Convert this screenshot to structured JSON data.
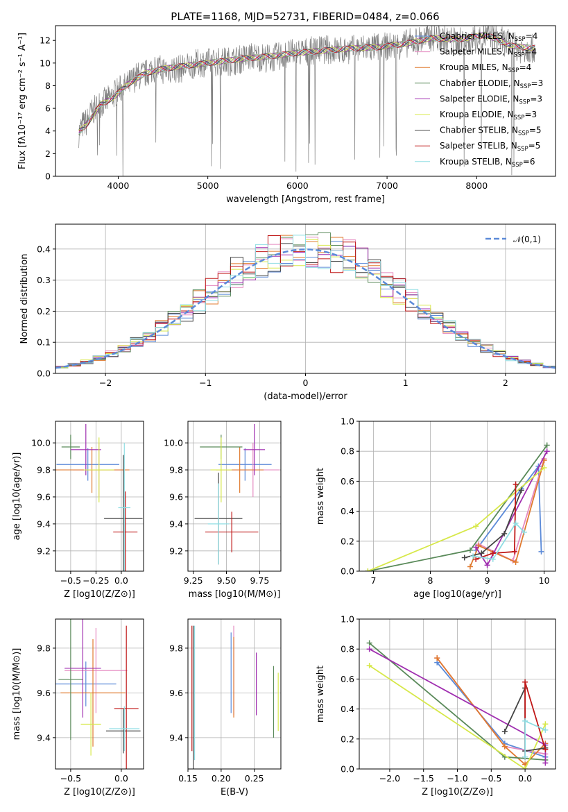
{
  "figure_title": "PLATE=1168, MJD=52731, FIBERID=0484, z=0.066",
  "models": [
    {
      "label": "Chabrier MILES, N",
      "sub": "SSP",
      "n": "=4",
      "color": "#5b8ad8"
    },
    {
      "label": "Salpeter MILES, N",
      "sub": "SSP",
      "n": "=4",
      "color": "#e58ac0"
    },
    {
      "label": "Kroupa MILES, N",
      "sub": "SSP",
      "n": "=4",
      "color": "#e07a2f"
    },
    {
      "label": "Chabrier ELODIE, N",
      "sub": "SSP",
      "n": "=3",
      "color": "#5a8a5a"
    },
    {
      "label": "Salpeter ELODIE, N",
      "sub": "SSP",
      "n": "=3",
      "color": "#a02fb0"
    },
    {
      "label": "Kroupa ELODIE, N",
      "sub": "SSP",
      "n": "=3",
      "color": "#d7e84a"
    },
    {
      "label": "Chabrier STELIB, N",
      "sub": "SSP",
      "n": "=5",
      "color": "#444444"
    },
    {
      "label": "Salpeter STELIB, N",
      "sub": "SSP",
      "n": "=5",
      "color": "#c01818"
    },
    {
      "label": "Kroupa STELIB, N",
      "sub": "SSP",
      "n": "=6",
      "color": "#8fdde3"
    }
  ],
  "chart_data": [
    {
      "id": "spectrum",
      "type": "line",
      "title": "PLATE=1168, MJD=52731, FIBERID=0484, z=0.066",
      "xlabel": "wavelength [Angstrom, rest frame]",
      "ylabel": "Flux [fλ10⁻¹⁷ erg cm⁻² s⁻¹ A⁻¹]",
      "xlim": [
        3300,
        8880
      ],
      "ylim": [
        0,
        13.3
      ],
      "xticks": [
        4000,
        5000,
        6000,
        7000,
        8000
      ],
      "yticks": [
        0,
        2,
        4,
        6,
        8,
        10,
        12
      ],
      "grid": false,
      "legend": "right",
      "data_series": {
        "name": "data",
        "color": "#808080",
        "x": [
          3560,
          3600,
          3650,
          3700,
          3800,
          3900,
          4000,
          4100,
          4200,
          4300,
          4400,
          4500,
          4700,
          4900,
          5100,
          5300,
          5500,
          5700,
          5900,
          6100,
          6300,
          6500,
          6700,
          6900,
          7100,
          7300,
          7500,
          7700,
          7900,
          8100,
          8300,
          8500,
          8650
        ],
        "y": [
          3.8,
          4.5,
          4.8,
          5.6,
          6.4,
          6.8,
          7.6,
          8.0,
          8.8,
          9.0,
          9.6,
          9.4,
          9.5,
          10.0,
          10.1,
          10.2,
          10.6,
          10.4,
          10.8,
          11.0,
          11.2,
          11.1,
          11.3,
          11.4,
          11.5,
          11.9,
          12.3,
          12.0,
          11.8,
          12.4,
          11.9,
          11.2,
          11.3
        ]
      },
      "model_curve": {
        "x": [
          3560,
          3650,
          3800,
          3950,
          4100,
          4300,
          4500,
          4800,
          5100,
          5400,
          5700,
          6000,
          6300,
          6600,
          6900,
          7200,
          7500,
          7800,
          8100,
          8400,
          8650
        ],
        "y": [
          3.9,
          4.6,
          6.3,
          7.0,
          8.1,
          9.1,
          9.5,
          9.8,
          10.1,
          10.4,
          10.6,
          10.9,
          11.1,
          11.3,
          11.4,
          11.7,
          12.2,
          12.1,
          12.5,
          11.5,
          11.3
        ]
      }
    },
    {
      "id": "residuals",
      "type": "line",
      "xlabel": "(data-model)/error",
      "ylabel": "Normed distribution",
      "xlim": [
        -2.5,
        2.5
      ],
      "ylim": [
        0,
        0.48
      ],
      "xticks": [
        -2,
        -1,
        0,
        1,
        2
      ],
      "yticks": [
        0.0,
        0.1,
        0.2,
        0.3,
        0.4
      ],
      "grid": true,
      "legend": "top-right",
      "normal_label": "𝒩(0,1)",
      "normal_color": "#5b8ad8"
    },
    {
      "id": "z-age",
      "type": "scatter",
      "xlabel": "Z [log10(Z/Z⊙)]",
      "ylabel": "age [log10(age/yr)]",
      "xlim": [
        -0.65,
        0.22
      ],
      "ylim": [
        9.05,
        10.16
      ],
      "xticks": [
        -0.5,
        -0.25,
        0.0
      ],
      "xticklabels": [
        "−0.5",
        "−0.25",
        "0.0"
      ],
      "yticks": [
        9.2,
        9.4,
        9.6,
        9.8,
        10.0
      ],
      "grid": true,
      "points": [
        {
          "x": -0.33,
          "y": 9.84,
          "xerr": 0.31,
          "yerr": 0.12,
          "color": "#5b8ad8"
        },
        {
          "x": -0.22,
          "y": 9.8,
          "xerr": 0.26,
          "yerr": 0.2,
          "color": "#e58ac0"
        },
        {
          "x": -0.29,
          "y": 9.8,
          "xerr": 0.37,
          "yerr": 0.17,
          "color": "#e07a2f"
        },
        {
          "x": -0.5,
          "y": 9.97,
          "xerr": 0.09,
          "yerr": 0.09,
          "color": "#5a8a5a"
        },
        {
          "x": -0.35,
          "y": 9.95,
          "xerr": 0.15,
          "yerr": 0.19,
          "color": "#a02fb0"
        },
        {
          "x": -0.22,
          "y": 9.8,
          "xerr": 0.15,
          "yerr": 0.24,
          "color": "#d7e84a"
        },
        {
          "x": 0.02,
          "y": 9.44,
          "xerr": 0.19,
          "yerr": 0.47,
          "color": "#444444"
        },
        {
          "x": 0.04,
          "y": 9.34,
          "xerr": 0.12,
          "yerr": 0.3,
          "color": "#c01818"
        },
        {
          "x": 0.03,
          "y": 9.52,
          "xerr": 0.06,
          "yerr": 0.48,
          "color": "#8fdde3"
        }
      ]
    },
    {
      "id": "mass-age",
      "type": "scatter",
      "xlabel": "mass [log10(M/M⊙)]",
      "xlim": [
        9.21,
        9.91
      ],
      "ylim": [
        9.05,
        10.16
      ],
      "xticks": [
        9.25,
        9.5,
        9.75
      ],
      "xticklabels": [
        "9.25",
        "9.50",
        "9.75"
      ],
      "yticks": [
        9.2,
        9.4,
        9.6,
        9.8,
        10.0
      ],
      "grid": true,
      "points": [
        {
          "x": 9.64,
          "y": 9.84,
          "xerr": 0.2,
          "yerr": 0.12,
          "color": "#5b8ad8"
        },
        {
          "x": 9.7,
          "y": 9.8,
          "xerr": 0.2,
          "yerr": 0.2,
          "color": "#e58ac0"
        },
        {
          "x": 9.6,
          "y": 9.8,
          "xerr": 0.18,
          "yerr": 0.17,
          "color": "#e07a2f"
        },
        {
          "x": 9.46,
          "y": 9.97,
          "xerr": 0.16,
          "yerr": 0.09,
          "color": "#5a8a5a"
        },
        {
          "x": 9.71,
          "y": 9.95,
          "xerr": 0.08,
          "yerr": 0.19,
          "color": "#a02fb0"
        },
        {
          "x": 9.46,
          "y": 9.8,
          "xerr": 0.08,
          "yerr": 0.24,
          "color": "#d7e84a"
        },
        {
          "x": 9.44,
          "y": 9.44,
          "xerr": 0.18,
          "yerr": 0.34,
          "color": "#444444"
        },
        {
          "x": 9.54,
          "y": 9.34,
          "xerr": 0.2,
          "yerr": 0.15,
          "color": "#c01818"
        },
        {
          "x": 9.44,
          "y": 9.4,
          "xerr": 0.08,
          "yerr": 0.3,
          "color": "#8fdde3"
        }
      ]
    },
    {
      "id": "age-weight",
      "type": "line",
      "xlabel": "age [log10(age/yr)]",
      "ylabel": "mass weight",
      "xlim": [
        6.75,
        10.2
      ],
      "ylim": [
        0,
        1.0
      ],
      "xticks": [
        7,
        8,
        9,
        10
      ],
      "yticks": [
        0.0,
        0.2,
        0.4,
        0.6,
        0.8,
        1.0
      ],
      "grid": true,
      "series": [
        {
          "color": "#5b8ad8",
          "x": [
            8.8,
            9.6,
            9.9,
            9.95
          ],
          "y": [
            0.14,
            0.55,
            0.7,
            0.13
          ]
        },
        {
          "color": "#e58ac0",
          "x": [
            8.85,
            9.45,
            10.0
          ],
          "y": [
            0.18,
            0.07,
            0.75
          ]
        },
        {
          "color": "#e07a2f",
          "x": [
            8.7,
            8.85,
            9.5,
            10.0
          ],
          "y": [
            0.03,
            0.17,
            0.06,
            0.74
          ]
        },
        {
          "color": "#5a8a5a",
          "x": [
            6.9,
            8.7,
            10.05
          ],
          "y": [
            0.0,
            0.14,
            0.84
          ]
        },
        {
          "color": "#a02fb0",
          "x": [
            8.8,
            9.0,
            10.05
          ],
          "y": [
            0.16,
            0.04,
            0.8
          ]
        },
        {
          "color": "#d7e84a",
          "x": [
            6.9,
            8.8,
            10.0
          ],
          "y": [
            0.0,
            0.3,
            0.69
          ]
        },
        {
          "color": "#444444",
          "x": [
            8.6,
            8.9,
            9.3,
            9.6
          ],
          "y": [
            0.09,
            0.12,
            0.25,
            0.54
          ]
        },
        {
          "color": "#c01818",
          "x": [
            8.8,
            9.1,
            9.48,
            9.5
          ],
          "y": [
            0.08,
            0.12,
            0.13,
            0.58
          ]
        },
        {
          "color": "#8fdde3",
          "x": [
            8.75,
            9.1,
            9.5,
            9.65
          ],
          "y": [
            0.1,
            0.08,
            0.32,
            0.26
          ]
        }
      ]
    },
    {
      "id": "z-mass",
      "type": "scatter",
      "xlabel": "Z [log10(Z/Z⊙)]",
      "ylabel": "mass [log10(M/M⊙)]",
      "xlim": [
        -0.65,
        0.22
      ],
      "ylim": [
        9.26,
        9.93
      ],
      "xticks": [
        -0.5,
        0.0
      ],
      "xticklabels": [
        "−0.5",
        "0.0"
      ],
      "yticks": [
        9.4,
        9.6,
        9.8
      ],
      "grid": true,
      "points": [
        {
          "x": -0.35,
          "y": 9.64,
          "xerr": 0.3,
          "yerr": 0.1,
          "color": "#5b8ad8"
        },
        {
          "x": -0.25,
          "y": 9.7,
          "xerr": 0.31,
          "yerr": 0.19,
          "color": "#e58ac0"
        },
        {
          "x": -0.28,
          "y": 9.6,
          "xerr": 0.32,
          "yerr": 0.24,
          "color": "#e07a2f"
        },
        {
          "x": -0.5,
          "y": 9.66,
          "xerr": 0.12,
          "yerr": 0.27,
          "color": "#5a8a5a"
        },
        {
          "x": -0.38,
          "y": 9.71,
          "xerr": 0.18,
          "yerr": 0.22,
          "color": "#a02fb0"
        },
        {
          "x": -0.3,
          "y": 9.46,
          "xerr": 0.1,
          "yerr": 0.14,
          "color": "#d7e84a"
        },
        {
          "x": 0.02,
          "y": 9.43,
          "xerr": 0.17,
          "yerr": 0.1,
          "color": "#444444"
        },
        {
          "x": 0.05,
          "y": 9.53,
          "xerr": 0.12,
          "yerr": 0.37,
          "color": "#c01818"
        },
        {
          "x": 0.03,
          "y": 9.44,
          "xerr": 0.15,
          "yerr": 0.1,
          "color": "#8fdde3"
        }
      ]
    },
    {
      "id": "ebv-mass",
      "type": "scatter",
      "xlabel": "E(B-V)",
      "xlim": [
        0.15,
        0.29
      ],
      "ylim": [
        9.26,
        9.93
      ],
      "xticks": [
        0.15,
        0.2,
        0.25
      ],
      "xticklabels": [
        "0.15",
        "0.20",
        "0.25"
      ],
      "yticks": [
        9.4,
        9.6,
        9.8
      ],
      "grid": true,
      "points": [
        {
          "x": 0.215,
          "y": 9.69,
          "xerr": 0,
          "yerr": 0.18,
          "color": "#5b8ad8"
        },
        {
          "x": 0.219,
          "y": 9.7,
          "xerr": 0,
          "yerr": 0.2,
          "color": "#e58ac0"
        },
        {
          "x": 0.219,
          "y": 9.67,
          "xerr": 0,
          "yerr": 0.18,
          "color": "#e07a2f"
        },
        {
          "x": 0.279,
          "y": 9.56,
          "xerr": 0,
          "yerr": 0.16,
          "color": "#5a8a5a"
        },
        {
          "x": 0.253,
          "y": 9.64,
          "xerr": 0,
          "yerr": 0.14,
          "color": "#a02fb0"
        },
        {
          "x": 0.286,
          "y": 9.56,
          "xerr": 0,
          "yerr": 0.13,
          "color": "#d7e84a"
        },
        {
          "x": 0.158,
          "y": 9.58,
          "xerr": 0,
          "yerr": 0.32,
          "color": "#444444"
        },
        {
          "x": 0.156,
          "y": 9.62,
          "xerr": 0,
          "yerr": 0.28,
          "color": "#c01818"
        },
        {
          "x": 0.16,
          "y": 9.6,
          "xerr": 0,
          "yerr": 0.3,
          "color": "#8fdde3"
        }
      ]
    },
    {
      "id": "z-weight",
      "type": "line",
      "xlabel": "Z [log10(Z/Z⊙)]",
      "ylabel": "mass weight",
      "xlim": [
        -2.45,
        0.45
      ],
      "ylim": [
        0,
        1.0
      ],
      "xticks": [
        -2.0,
        -1.5,
        -1.0,
        -0.5,
        0.0
      ],
      "xticklabels": [
        "−2.0",
        "−1.5",
        "−1.0",
        "−0.5",
        "0.0"
      ],
      "yticks": [
        0.0,
        0.2,
        0.4,
        0.6,
        0.8,
        1.0
      ],
      "grid": true,
      "series": [
        {
          "color": "#5b8ad8",
          "x": [
            -1.3,
            -0.3,
            0.3
          ],
          "y": [
            0.71,
            0.17,
            0.08
          ]
        },
        {
          "color": "#e58ac0",
          "x": [
            -1.3,
            -0.3,
            0.3
          ],
          "y": [
            0.74,
            0.15,
            0.1
          ]
        },
        {
          "color": "#e07a2f",
          "x": [
            -1.3,
            -0.3,
            0.0,
            0.3
          ],
          "y": [
            0.74,
            0.15,
            0.03,
            0.17
          ]
        },
        {
          "color": "#5a8a5a",
          "x": [
            -2.3,
            -0.3,
            0.3
          ],
          "y": [
            0.84,
            0.08,
            0.06
          ]
        },
        {
          "color": "#a02fb0",
          "x": [
            -2.3,
            0.3,
            0.3
          ],
          "y": [
            0.8,
            0.16,
            0.04
          ]
        },
        {
          "color": "#d7e84a",
          "x": [
            -2.3,
            0.0,
            0.3
          ],
          "y": [
            0.69,
            0.0,
            0.3
          ]
        },
        {
          "color": "#444444",
          "x": [
            -0.3,
            0.0,
            0.0,
            0.3
          ],
          "y": [
            0.25,
            0.54,
            0.12,
            0.14
          ]
        },
        {
          "color": "#c01818",
          "x": [
            0.0,
            0.0,
            0.3
          ],
          "y": [
            0.08,
            0.58,
            0.13
          ]
        },
        {
          "color": "#8fdde3",
          "x": [
            0.0,
            0.0,
            0.3
          ],
          "y": [
            0.08,
            0.32,
            0.26
          ]
        }
      ]
    }
  ]
}
